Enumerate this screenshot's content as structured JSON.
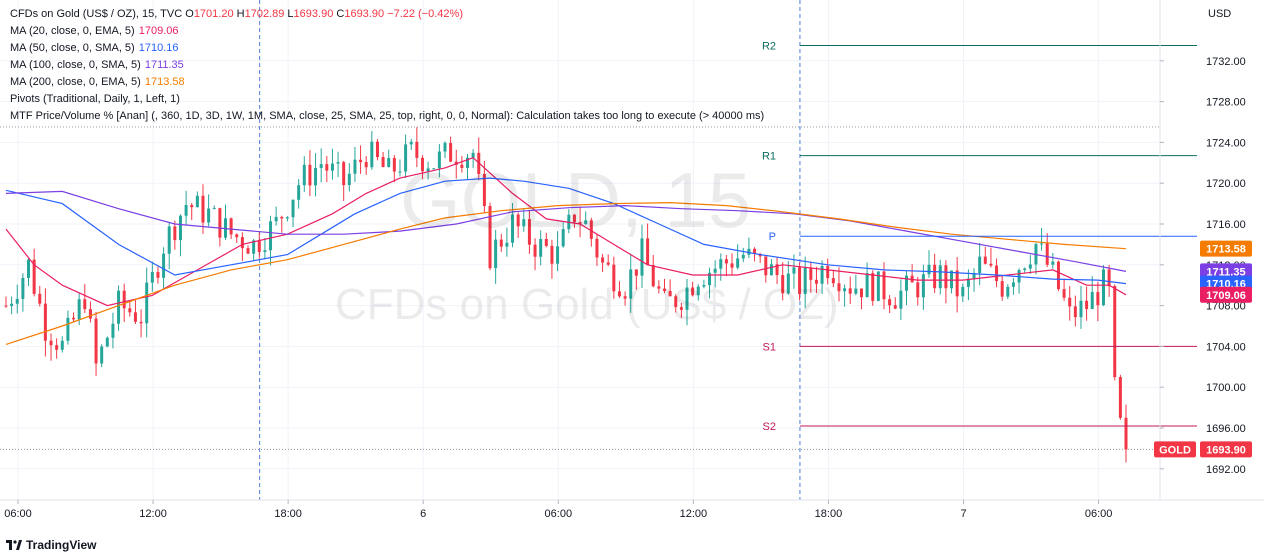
{
  "header": {
    "symbol": "CFDs on Gold (US$ / OZ), 15, TVC",
    "ohlc": {
      "o_key": "O",
      "o": "1701.20",
      "h_key": "H",
      "h": "1702.89",
      "l_key": "L",
      "l": "1693.90",
      "c_key": "C",
      "c": "1693.90",
      "change": "−7.22 (−0.42%)"
    },
    "indicators": [
      {
        "label": "MA (20, close, 0, EMA, 5)",
        "value": "1709.06",
        "color": "#e91e63"
      },
      {
        "label": "MA (50, close, 0, SMA, 5)",
        "value": "1710.16",
        "color": "#2962ff"
      },
      {
        "label": "MA (100, close, 0, SMA, 5)",
        "value": "1711.35",
        "color": "#7b3fe4"
      },
      {
        "label": "MA (200, close, 0, EMA, 5)",
        "value": "1713.58",
        "color": "#f57c00"
      },
      {
        "label": "Pivots (Traditional, Daily, 1, Left, 1)",
        "value": "",
        "color": "#131722"
      },
      {
        "label": "MTF Price/Volume % [Anan] (, 360, 1D, 3D, 1W, 1M, SMA, close, 25, SMA, 25, top, right, 0, 0, Normal): Calculation takes too long to execute (> 40000 ms)",
        "value": "",
        "color": "#131722"
      }
    ]
  },
  "watermark": {
    "symbol": "GOLD, 15",
    "description": "CFDs on Gold (US$ / OZ)"
  },
  "currency_label": "USD",
  "footer": {
    "brand": "TradingView"
  },
  "colors": {
    "up": "#26a69a",
    "down": "#f23645",
    "grid": "#f0f3fa"
  },
  "chart_data": {
    "type": "candlestick",
    "ylim": [
      1690.5,
      1736
    ],
    "y_ticks": [
      "1692.00",
      "1696.00",
      "1700.00",
      "1704.00",
      "1708.00",
      "1712.00",
      "1716.00",
      "1720.00",
      "1724.00",
      "1728.00",
      "1732.00"
    ],
    "x_ticks": [
      {
        "label": "06:00",
        "bar": 0
      },
      {
        "label": "12:00",
        "bar": 24
      },
      {
        "label": "18:00",
        "bar": 48
      },
      {
        "label": "6",
        "bar": 72
      },
      {
        "label": "06:00",
        "bar": 96
      },
      {
        "label": "12:00",
        "bar": 120
      },
      {
        "label": "18:00",
        "bar": 144
      },
      {
        "label": "7",
        "bar": 168
      },
      {
        "label": "06:00",
        "bar": 192
      }
    ],
    "session_breaks": [
      44,
      140
    ],
    "pivots": [
      {
        "name": "R2",
        "value": 1733.5,
        "from_bar": 140,
        "color": "#0b6b5e"
      },
      {
        "name": "R1",
        "value": 1722.7,
        "from_bar": 140,
        "color": "#0b6b5e"
      },
      {
        "name": "P",
        "value": 1714.8,
        "from_bar": 140,
        "color": "#2962ff"
      },
      {
        "name": "S1",
        "value": 1704.0,
        "from_bar": 140,
        "color": "#c2185b"
      },
      {
        "name": "S2",
        "value": 1696.2,
        "from_bar": 140,
        "color": "#c2185b"
      }
    ],
    "waypoints": [
      [
        0,
        1708
      ],
      [
        4,
        1712
      ],
      [
        7,
        1706
      ],
      [
        10,
        1704
      ],
      [
        14,
        1709
      ],
      [
        16,
        1702
      ],
      [
        20,
        1708
      ],
      [
        24,
        1707
      ],
      [
        28,
        1714
      ],
      [
        32,
        1718
      ],
      [
        36,
        1717
      ],
      [
        40,
        1715
      ],
      [
        44,
        1714
      ],
      [
        48,
        1716
      ],
      [
        52,
        1720
      ],
      [
        56,
        1722
      ],
      [
        60,
        1720
      ],
      [
        64,
        1723
      ],
      [
        68,
        1721
      ],
      [
        72,
        1723
      ],
      [
        76,
        1722
      ],
      [
        79,
        1723
      ],
      [
        83,
        1723
      ],
      [
        86,
        1713
      ],
      [
        90,
        1716
      ],
      [
        94,
        1714
      ],
      [
        98,
        1713
      ],
      [
        101,
        1717
      ],
      [
        103,
        1716
      ],
      [
        106,
        1712
      ],
      [
        110,
        1710
      ],
      [
        113,
        1713
      ],
      [
        117,
        1708
      ],
      [
        120,
        1709
      ],
      [
        123,
        1711
      ],
      [
        127,
        1712
      ],
      [
        131,
        1713
      ],
      [
        134,
        1712
      ],
      [
        137,
        1711
      ],
      [
        141,
        1710
      ],
      [
        146,
        1712
      ],
      [
        150,
        1710
      ],
      [
        154,
        1710
      ],
      [
        158,
        1709
      ],
      [
        162,
        1710
      ],
      [
        166,
        1711
      ],
      [
        170,
        1709
      ],
      [
        173,
        1712
      ],
      [
        177,
        1710
      ],
      [
        180,
        1712
      ],
      [
        183,
        1714
      ],
      [
        186,
        1711
      ],
      [
        189,
        1707
      ],
      [
        192,
        1708
      ],
      [
        195,
        1710
      ],
      [
        196,
        1709
      ],
      [
        197,
        1701
      ],
      [
        198,
        1697
      ],
      [
        199,
        1693.9
      ]
    ],
    "ma_series": [
      {
        "name": "MA (20, close, 0, EMA, 5)",
        "color": "#e91e63",
        "points": [
          [
            0,
            1715.5
          ],
          [
            5,
            1712
          ],
          [
            10,
            1710
          ],
          [
            18,
            1708
          ],
          [
            26,
            1709
          ],
          [
            34,
            1711.5
          ],
          [
            42,
            1714
          ],
          [
            50,
            1715
          ],
          [
            58,
            1717
          ],
          [
            64,
            1719
          ],
          [
            70,
            1720.5
          ],
          [
            78,
            1721.5
          ],
          [
            83,
            1722.5
          ],
          [
            90,
            1719
          ],
          [
            96,
            1716.5
          ],
          [
            102,
            1716
          ],
          [
            108,
            1714
          ],
          [
            114,
            1712
          ],
          [
            122,
            1711
          ],
          [
            130,
            1711
          ],
          [
            138,
            1712
          ],
          [
            146,
            1711.5
          ],
          [
            154,
            1711
          ],
          [
            162,
            1710.5
          ],
          [
            170,
            1710.5
          ],
          [
            178,
            1711
          ],
          [
            186,
            1711.5
          ],
          [
            192,
            1710
          ],
          [
            196,
            1710
          ],
          [
            199,
            1709.06
          ]
        ]
      },
      {
        "name": "MA (50, close, 0, SMA, 5)",
        "color": "#2962ff",
        "points": [
          [
            0,
            1719.3
          ],
          [
            10,
            1718
          ],
          [
            20,
            1714
          ],
          [
            30,
            1711
          ],
          [
            40,
            1712
          ],
          [
            50,
            1713
          ],
          [
            56,
            1715
          ],
          [
            62,
            1717
          ],
          [
            70,
            1719
          ],
          [
            78,
            1720.2
          ],
          [
            86,
            1720.5
          ],
          [
            92,
            1720.2
          ],
          [
            100,
            1719.5
          ],
          [
            108,
            1718
          ],
          [
            116,
            1716
          ],
          [
            124,
            1714
          ],
          [
            134,
            1713
          ],
          [
            146,
            1712
          ],
          [
            156,
            1711.5
          ],
          [
            166,
            1711.3
          ],
          [
            176,
            1711
          ],
          [
            186,
            1710.6
          ],
          [
            194,
            1710.5
          ],
          [
            199,
            1710.16
          ]
        ]
      },
      {
        "name": "MA (100, close, 0, SMA, 5)",
        "color": "#7b3fe4",
        "points": [
          [
            0,
            1719
          ],
          [
            10,
            1719.2
          ],
          [
            20,
            1717.5
          ],
          [
            30,
            1716
          ],
          [
            40,
            1715.5
          ],
          [
            50,
            1715
          ],
          [
            60,
            1715
          ],
          [
            70,
            1715.3
          ],
          [
            80,
            1716
          ],
          [
            90,
            1717.2
          ],
          [
            100,
            1717.6
          ],
          [
            110,
            1717.8
          ],
          [
            120,
            1717.5
          ],
          [
            130,
            1717.3
          ],
          [
            140,
            1717
          ],
          [
            150,
            1716.3
          ],
          [
            160,
            1715.3
          ],
          [
            170,
            1714.3
          ],
          [
            180,
            1713.3
          ],
          [
            190,
            1712.3
          ],
          [
            199,
            1711.35
          ]
        ]
      },
      {
        "name": "MA (200, close, 0, EMA, 5)",
        "color": "#f57c00",
        "points": [
          [
            0,
            1704.2
          ],
          [
            10,
            1706
          ],
          [
            20,
            1708
          ],
          [
            30,
            1710
          ],
          [
            40,
            1711.5
          ],
          [
            50,
            1712.5
          ],
          [
            60,
            1714
          ],
          [
            70,
            1715.5
          ],
          [
            78,
            1716.6
          ],
          [
            88,
            1717.3
          ],
          [
            98,
            1717.8
          ],
          [
            108,
            1718
          ],
          [
            118,
            1718.1
          ],
          [
            128,
            1717.8
          ],
          [
            138,
            1717.2
          ],
          [
            148,
            1716.5
          ],
          [
            158,
            1715.7
          ],
          [
            168,
            1715
          ],
          [
            178,
            1714.5
          ],
          [
            188,
            1714
          ],
          [
            199,
            1713.58
          ]
        ]
      }
    ],
    "price_tags": [
      {
        "value": 1713.58,
        "text": "1713.58",
        "color": "#f57c00"
      },
      {
        "value": 1711.35,
        "text": "1711.35",
        "color": "#7b3fe4"
      },
      {
        "value": 1710.16,
        "text": "1710.16",
        "color": "#2962ff"
      },
      {
        "value": 1709.06,
        "text": "1709.06",
        "color": "#e91e63"
      },
      {
        "value": 1693.9,
        "text": "1693.90",
        "symbol": "GOLD",
        "color": "#f23645"
      }
    ]
  }
}
